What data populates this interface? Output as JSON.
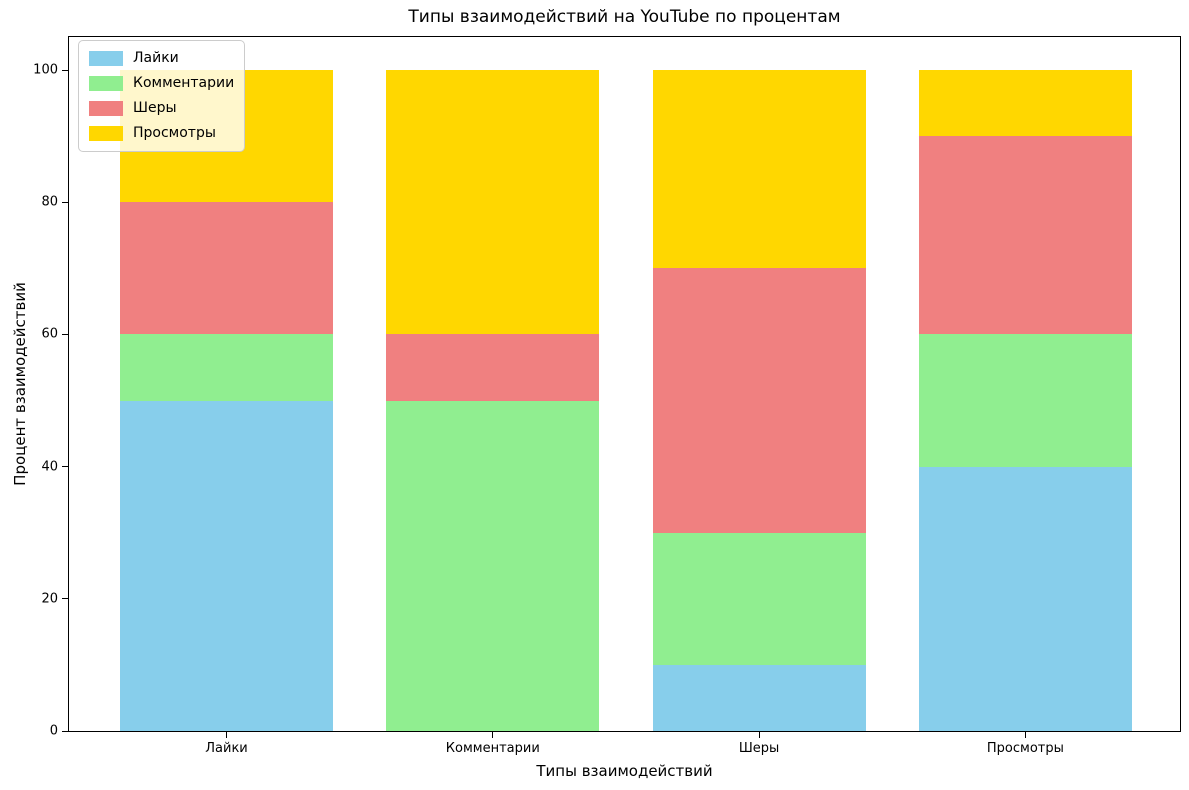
{
  "chart_data": {
    "type": "bar",
    "stacked": true,
    "title": "Типы взаимодействий на YouTube по процентам",
    "xlabel": "Типы взаимодействий",
    "ylabel": "Процент взаимодействий",
    "categories": [
      "Лайки",
      "Комментарии",
      "Шеры",
      "Просмотры"
    ],
    "series": [
      {
        "name": "Лайки",
        "color": "#87CEEB",
        "values": [
          50,
          0,
          10,
          40
        ]
      },
      {
        "name": "Комментарии",
        "color": "#90EE90",
        "values": [
          10,
          50,
          20,
          20
        ]
      },
      {
        "name": "Шеры",
        "color": "#F08080",
        "values": [
          20,
          10,
          40,
          30
        ]
      },
      {
        "name": "Просмотры",
        "color": "#FFD700",
        "values": [
          20,
          40,
          30,
          10
        ]
      }
    ],
    "column_totals": [
      100,
      100,
      100,
      100
    ],
    "ylim": [
      0,
      105
    ],
    "yticks": [
      0,
      20,
      40,
      60,
      80,
      100
    ],
    "grid": false,
    "legend_position": "upper-left"
  }
}
